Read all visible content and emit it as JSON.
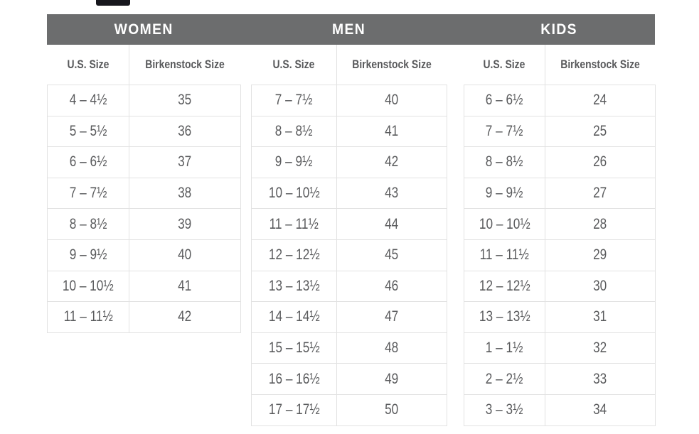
{
  "colors": {
    "band_background": "#6c6d6e",
    "band_text": "#ffffff",
    "table_border": "#e2e2e2",
    "cell_text": "#5a5b5d",
    "tooltip_badge": "#17171d",
    "page_background": "#ffffff"
  },
  "sections": [
    {
      "title": "WOMEN",
      "columns": [
        "U.S. Size",
        "Birkenstock Size"
      ],
      "rows": [
        [
          "4 – 4½",
          "35"
        ],
        [
          "5 – 5½",
          "36"
        ],
        [
          "6 – 6½",
          "37"
        ],
        [
          "7 – 7½",
          "38"
        ],
        [
          "8 – 8½",
          "39"
        ],
        [
          "9 – 9½",
          "40"
        ],
        [
          "10 – 10½",
          "41"
        ],
        [
          "11 – 11½",
          "42"
        ]
      ]
    },
    {
      "title": "MEN",
      "columns": [
        "U.S. Size",
        "Birkenstock Size"
      ],
      "rows": [
        [
          "7 – 7½",
          "40"
        ],
        [
          "8 – 8½",
          "41"
        ],
        [
          "9 – 9½",
          "42"
        ],
        [
          "10 – 10½",
          "43"
        ],
        [
          "11 – 11½",
          "44"
        ],
        [
          "12 – 12½",
          "45"
        ],
        [
          "13 – 13½",
          "46"
        ],
        [
          "14 – 14½",
          "47"
        ],
        [
          "15 – 15½",
          "48"
        ],
        [
          "16 – 16½",
          "49"
        ],
        [
          "17 – 17½",
          "50"
        ]
      ]
    },
    {
      "title": "KIDS",
      "columns": [
        "U.S. Size",
        "Birkenstock Size"
      ],
      "rows": [
        [
          "6 – 6½",
          "24"
        ],
        [
          "7 – 7½",
          "25"
        ],
        [
          "8 – 8½",
          "26"
        ],
        [
          "9 – 9½",
          "27"
        ],
        [
          "10 – 10½",
          "28"
        ],
        [
          "11 – 11½",
          "29"
        ],
        [
          "12 – 12½",
          "30"
        ],
        [
          "13 – 13½",
          "31"
        ],
        [
          "1 – 1½",
          "32"
        ],
        [
          "2 – 2½",
          "33"
        ],
        [
          "3 – 3½",
          "34"
        ]
      ]
    }
  ]
}
